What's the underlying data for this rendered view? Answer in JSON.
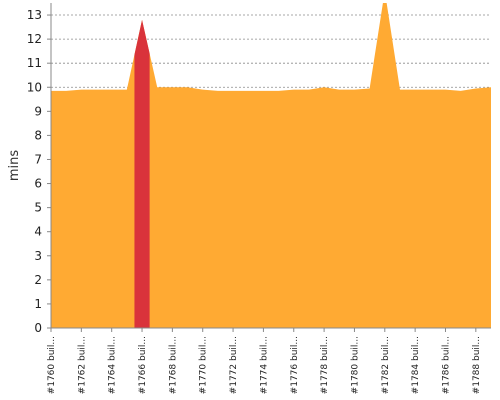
{
  "chart_data": {
    "type": "area",
    "title": "",
    "xlabel": "",
    "ylabel": "mins",
    "ylim": [
      0,
      13.5
    ],
    "yticks": [
      0,
      1,
      2,
      3,
      4,
      5,
      6,
      7,
      8,
      9,
      10,
      11,
      12,
      13
    ],
    "grid": true,
    "colors": {
      "success": "#ffaa33",
      "failed": "#d9333b"
    },
    "x": [
      "#1760",
      "#1761",
      "#1762",
      "#1763",
      "#1764",
      "#1765",
      "#1766",
      "#1767",
      "#1768",
      "#1769",
      "#1770",
      "#1771",
      "#1772",
      "#1773",
      "#1774",
      "#1775",
      "#1776",
      "#1777",
      "#1778",
      "#1779",
      "#1780",
      "#1781",
      "#1782",
      "#1783",
      "#1784",
      "#1785",
      "#1786",
      "#1787",
      "#1788",
      "#1789"
    ],
    "x_tick_labels": [
      "#1760 buil...",
      "#1762 buil...",
      "#1764 buil...",
      "#1766 buil...",
      "#1768 buil...",
      "#1770 buil...",
      "#1772 buil...",
      "#1774 buil...",
      "#1776 buil...",
      "#1778 buil...",
      "#1780 buil...",
      "#1782 buil...",
      "#1784 buil...",
      "#1786 buil...",
      "#1788 buil..."
    ],
    "series": [
      {
        "name": "",
        "values": [
          9.85,
          9.85,
          9.9,
          9.9,
          9.9,
          9.9,
          12.8,
          10.0,
          10.0,
          10.0,
          9.9,
          9.85,
          9.85,
          9.85,
          9.85,
          9.85,
          9.9,
          9.9,
          10.0,
          9.9,
          9.9,
          9.95,
          14.0,
          9.9,
          9.9,
          9.9,
          9.9,
          9.85,
          9.95,
          10.0
        ]
      }
    ],
    "failed_builds": [
      "#1766"
    ]
  }
}
